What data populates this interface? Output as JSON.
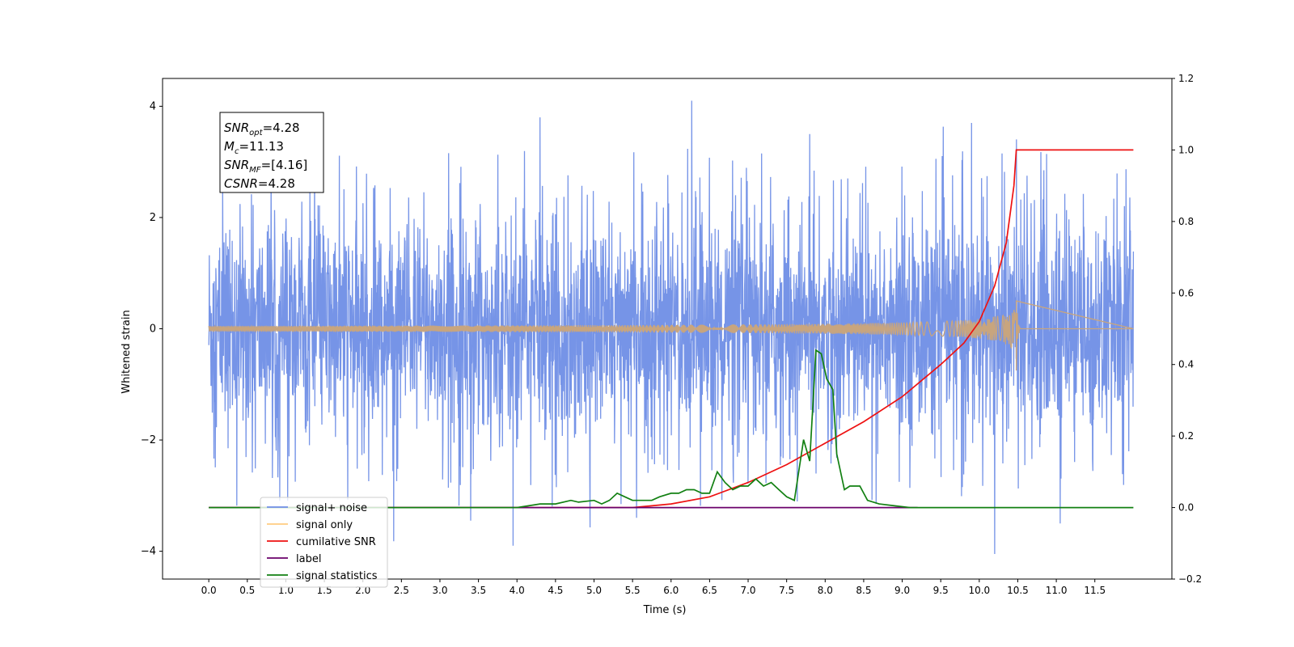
{
  "chart_data": {
    "type": "line",
    "xlabel": "Time (s)",
    "ylabel": "Whitened strain",
    "xlim": [
      -0.6,
      12.5
    ],
    "ylim": [
      -4.5,
      4.5
    ],
    "y2lim": [
      -0.2,
      1.2
    ],
    "x_ticks": [
      0.0,
      0.5,
      1.0,
      1.5,
      2.0,
      2.5,
      3.0,
      3.5,
      4.0,
      4.5,
      5.0,
      5.5,
      6.0,
      6.5,
      7.0,
      7.5,
      8.0,
      8.5,
      9.0,
      9.5,
      10.0,
      10.5,
      11.0,
      11.5
    ],
    "x_tick_labels": [
      "0.0",
      "0.5",
      "1.0",
      "1.5",
      "2.0",
      "2.5",
      "3.0",
      "3.5",
      "4.0",
      "4.5",
      "5.0",
      "5.5",
      "6.0",
      "6.5",
      "7.0",
      "7.5",
      "8.0",
      "8.5",
      "9.0",
      "9.5",
      "10.0",
      "10.5",
      "11.0",
      "11.5"
    ],
    "y_ticks": [
      4,
      2,
      0,
      -2,
      -4
    ],
    "y_tick_labels": [
      "4",
      "2",
      "0",
      "−2",
      "−4"
    ],
    "y2_ticks": [
      1.2,
      1.0,
      0.8,
      0.6,
      0.4,
      0.2,
      0.0,
      -0.2
    ],
    "y2_tick_labels": [
      "1.2",
      "1.0",
      "0.8",
      "0.6",
      "0.4",
      "0.2",
      "0.0",
      "−0.2"
    ],
    "legend_position": "lower-left",
    "annotation": {
      "lines": [
        {
          "sym": "SNR",
          "sub": "opt",
          "val": "=4.28"
        },
        {
          "sym": "M",
          "sub": "c",
          "val": "=11.13"
        },
        {
          "sym": "SNR",
          "sub": "MF",
          "val": "=[4.16]"
        },
        {
          "sym": "CSNR",
          "sub": "",
          "val": "=4.28"
        }
      ]
    },
    "series": [
      {
        "name": "signal+ noise",
        "axis": "left",
        "color": "#6f8ee6",
        "generated": true,
        "x_range": [
          0.0,
          12.0
        ],
        "band": 1.5,
        "spike_peaks": [
          {
            "x": 3.95,
            "y": -3.9
          },
          {
            "x": 4.3,
            "y": 3.8
          },
          {
            "x": 6.27,
            "y": 4.1
          },
          {
            "x": 7.8,
            "y": 3.5
          },
          {
            "x": 9.9,
            "y": 3.7
          },
          {
            "x": 10.2,
            "y": 3.85
          },
          {
            "x": 10.2,
            "y": -4.05
          },
          {
            "x": 11.05,
            "y": -3.5
          },
          {
            "x": 5.55,
            "y": -3.4
          },
          {
            "x": 3.4,
            "y": -3.45
          }
        ]
      },
      {
        "name": "signal only",
        "axis": "left",
        "color": "#c8a57e",
        "generated": true,
        "x_range": [
          0.0,
          12.0
        ],
        "merger_x": 10.48,
        "peak_amplitude": 0.5
      },
      {
        "name": "cumilative SNR",
        "axis": "right",
        "color": "#ee1111",
        "x": [
          0.0,
          5.5,
          6.0,
          6.5,
          7.0,
          7.5,
          8.0,
          8.5,
          9.0,
          9.5,
          9.8,
          10.0,
          10.2,
          10.35,
          10.45,
          10.48,
          12.0
        ],
        "y": [
          0.0,
          0.0,
          0.01,
          0.03,
          0.07,
          0.12,
          0.18,
          0.24,
          0.31,
          0.4,
          0.46,
          0.52,
          0.62,
          0.74,
          0.9,
          1.0,
          1.0
        ]
      },
      {
        "name": "label",
        "axis": "right",
        "color": "#6a006a",
        "x": [
          0.0,
          9.2
        ],
        "y": [
          0.0,
          0.0
        ]
      },
      {
        "name": "signal statistics",
        "axis": "right",
        "color": "#128012",
        "x": [
          0.0,
          4.0,
          4.3,
          4.5,
          4.7,
          4.8,
          5.0,
          5.1,
          5.2,
          5.3,
          5.4,
          5.5,
          5.6,
          5.75,
          5.85,
          6.0,
          6.1,
          6.2,
          6.3,
          6.4,
          6.5,
          6.6,
          6.7,
          6.8,
          6.9,
          7.0,
          7.1,
          7.2,
          7.3,
          7.4,
          7.5,
          7.6,
          7.72,
          7.8,
          7.88,
          7.95,
          8.02,
          8.1,
          8.15,
          8.25,
          8.32,
          8.45,
          8.55,
          8.7,
          8.9,
          9.1,
          9.3,
          12.0
        ],
        "y": [
          0.0,
          0.0,
          0.01,
          0.01,
          0.02,
          0.015,
          0.02,
          0.01,
          0.02,
          0.04,
          0.03,
          0.02,
          0.02,
          0.02,
          0.03,
          0.04,
          0.04,
          0.05,
          0.05,
          0.04,
          0.04,
          0.1,
          0.07,
          0.05,
          0.06,
          0.06,
          0.08,
          0.06,
          0.07,
          0.05,
          0.03,
          0.02,
          0.19,
          0.13,
          0.44,
          0.43,
          0.36,
          0.33,
          0.15,
          0.05,
          0.06,
          0.06,
          0.02,
          0.01,
          0.005,
          0.0,
          0.0,
          0.0
        ]
      }
    ]
  }
}
